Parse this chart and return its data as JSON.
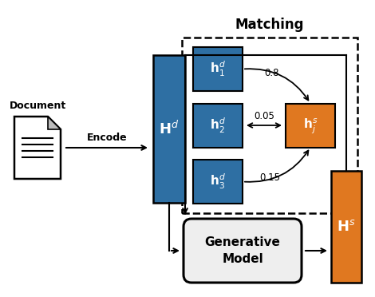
{
  "title": "Matching",
  "blue_color": "#2E6FA3",
  "orange_color": "#E07820",
  "gen_bg": "#f0f0f0",
  "white": "#ffffff",
  "black": "#000000",
  "encode_label": "Encode",
  "hd_label": "$\\mathbf{H}^d$",
  "hs_label": "$\\mathbf{H}^s$",
  "gen_label": "Generative\nModel",
  "doc_label": "Document",
  "h1_label": "$\\mathbf{h}_1^d$",
  "h2_label": "$\\mathbf{h}_2^d$",
  "h3_label": "$\\mathbf{h}_3^d$",
  "hj_label": "$\\mathbf{h}_j^s$",
  "score1": "0.8",
  "score2": "0.05",
  "score3": "0.15"
}
